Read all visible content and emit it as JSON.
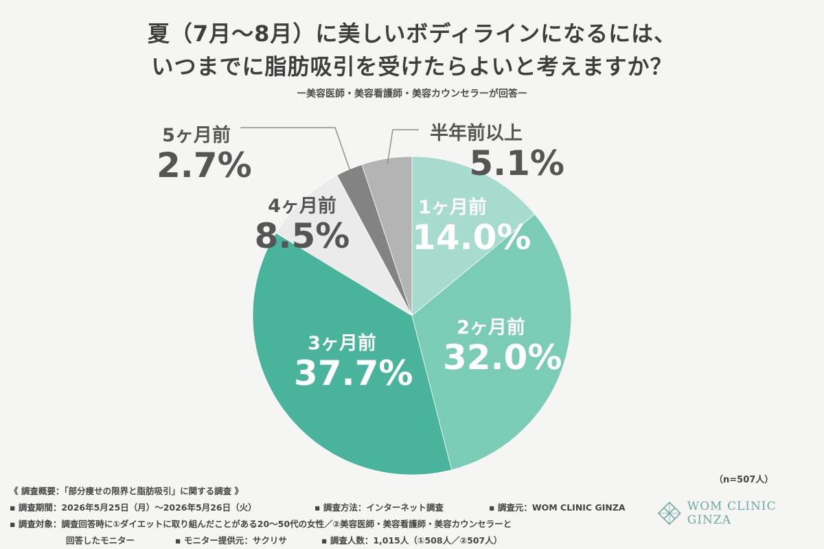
{
  "title_line1": "夏（7月〜8月）に美しいボディラインになるには、",
  "title_line2": "いつまでに脂肪吸引を受けたらよいと考えますか？",
  "subtitle": "ー美容医師・美容看護師・美容カウンセラーが回答ー",
  "chart_data": {
    "type": "pie",
    "slices": [
      {
        "label": "1ヶ月前",
        "value": 14.0,
        "display": "14.0%",
        "color": "#a6dbcd"
      },
      {
        "label": "2ヶ月前",
        "value": 32.0,
        "display": "32.0%",
        "color": "#7bccb6"
      },
      {
        "label": "3ヶ月前",
        "value": 37.7,
        "display": "37.7%",
        "color": "#4ab39c"
      },
      {
        "label": "4ヶ月前",
        "value": 8.5,
        "display": "8.5%",
        "color": "#ebebeb"
      },
      {
        "label": "5ヶ月前",
        "value": 2.7,
        "display": "2.7%",
        "color": "#838383"
      },
      {
        "label": "半年前以上",
        "value": 5.1,
        "display": "5.1%",
        "color": "#b4b4b4"
      }
    ],
    "start_angle": "12 o'clock",
    "direction": "clockwise",
    "sample_note": "（n=507人）"
  },
  "footer": {
    "overview": "《 調査概要：「部分痩せの限界と脂肪吸引」に関する調査 》",
    "period": "▪ 調査期間：2026年5月25日（月）〜2026年5月26日（火）",
    "method": "▪ 調査方法：インターネット調査",
    "source": "▪ 調査元：WOM CLINIC GINZA",
    "target": "▪ 調査対象：調査回答時に①ダイエットに取り組んだことがある20〜50代の女性／②美容医師・美容看護師・美容カウンセラーと",
    "target2": "回答したモニター",
    "provider": "▪ モニター提供元：サクリサ",
    "count": "▪ 調査人数：1,015人（①508人／②507人）"
  },
  "logo": {
    "text": "WOM CLINIC GINZA",
    "icon": "diamond-lattice-icon",
    "color": "#6fa8a0"
  }
}
